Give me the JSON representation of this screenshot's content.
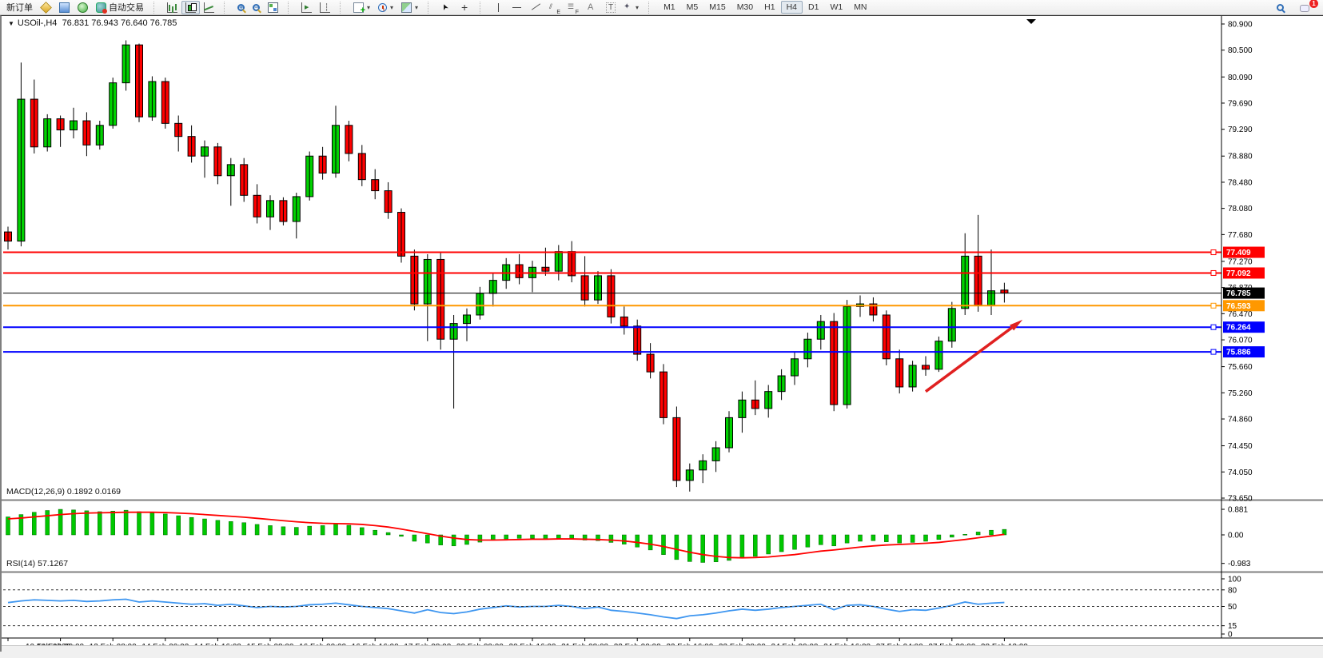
{
  "toolbar": {
    "new_order_label": "新订单",
    "auto_trading_label": "自动交易",
    "timeframes": [
      "M1",
      "M5",
      "M15",
      "M30",
      "H1",
      "H4",
      "D1",
      "W1",
      "MN"
    ],
    "active_timeframe": "H4",
    "notification_badge": "1",
    "icons": [
      "market-watch-icon",
      "data-window-icon",
      "navigator-icon",
      "autotrade-icon",
      "bar-chart-icon",
      "candlestick-chart-icon",
      "line-chart-icon",
      "zoom-in-icon",
      "zoom-out-icon",
      "tile-windows-icon",
      "auto-scroll-icon",
      "chart-shift-icon",
      "add-indicator-icon",
      "period-icon",
      "template-icon",
      "cursor-icon",
      "crosshair-icon",
      "vertical-line-icon",
      "horizontal-line-icon",
      "trendline-icon",
      "equidistant-channel-icon",
      "fibonacci-icon",
      "text-icon",
      "text-label-icon",
      "arrow-objects-icon",
      "search-icon",
      "chat-icon"
    ]
  },
  "chart_data": [
    {
      "type": "candlestick",
      "symbol": "USOil-",
      "timeframe": "H4",
      "title": "USOil-,H4",
      "ohlc_text": "76.831 76.943 76.640 76.785",
      "current_price": 76.785,
      "ylim": [
        73.65,
        80.9
      ],
      "colors": {
        "up": "#00d200",
        "down": "#ff0000",
        "outline": "#000000"
      },
      "price_ticks": [
        "80.900",
        "80.500",
        "80.090",
        "79.690",
        "79.290",
        "78.880",
        "78.480",
        "78.080",
        "77.680",
        "77.270",
        "76.870",
        "76.470",
        "76.070",
        "75.660",
        "75.260",
        "74.860",
        "74.450",
        "74.050",
        "73.650"
      ],
      "hlines": [
        {
          "price": 77.409,
          "label": "77.409",
          "color": "#ff0000"
        },
        {
          "price": 77.092,
          "label": "77.092",
          "color": "#ff0000"
        },
        {
          "price": 76.785,
          "label": "76.785",
          "color": "#000000",
          "is_current_price": true
        },
        {
          "price": 76.593,
          "label": "76.593",
          "color": "#ff9800"
        },
        {
          "price": 76.264,
          "label": "76.264",
          "color": "#0000ff"
        },
        {
          "price": 75.886,
          "label": "75.886",
          "color": "#0000ff"
        }
      ],
      "trend_arrow": {
        "color": "#e02020",
        "from_price": 75.28,
        "to_price": 76.32,
        "from_bar": 70,
        "to_bar": 77
      },
      "x_labels": [
        "10 Feb 2023",
        "10 Feb 20:00",
        "13 Feb 08:00",
        "14 Feb 00:00",
        "14 Feb 16:00",
        "15 Feb 08:00",
        "16 Feb 00:00",
        "16 Feb 16:00",
        "17 Feb 08:00",
        "20 Feb 00:00",
        "20 Feb 16:00",
        "21 Feb 08:00",
        "22 Feb 00:00",
        "22 Feb 16:00",
        "23 Feb 08:00",
        "24 Feb 00:00",
        "24 Feb 16:00",
        "27 Feb 04:00",
        "27 Feb 20:00",
        "28 Feb 12:00"
      ],
      "candles": [
        [
          77.72,
          77.8,
          77.45,
          77.58
        ],
        [
          77.58,
          80.31,
          77.5,
          79.75
        ],
        [
          79.75,
          80.05,
          78.92,
          79.02
        ],
        [
          79.02,
          79.52,
          78.95,
          79.45
        ],
        [
          79.45,
          79.5,
          79.02,
          79.28
        ],
        [
          79.28,
          79.62,
          79.15,
          79.42
        ],
        [
          79.42,
          79.55,
          78.88,
          79.05
        ],
        [
          79.05,
          79.42,
          78.98,
          79.35
        ],
        [
          79.35,
          80.08,
          79.3,
          80.0
        ],
        [
          80.0,
          80.65,
          79.88,
          80.58
        ],
        [
          80.58,
          80.6,
          79.4,
          79.48
        ],
        [
          79.48,
          80.1,
          79.42,
          80.02
        ],
        [
          80.02,
          80.08,
          79.3,
          79.38
        ],
        [
          79.38,
          79.5,
          78.95,
          79.18
        ],
        [
          79.18,
          79.35,
          78.78,
          78.88
        ],
        [
          78.88,
          79.12,
          78.55,
          79.02
        ],
        [
          79.02,
          79.08,
          78.45,
          78.58
        ],
        [
          78.58,
          78.85,
          78.12,
          78.75
        ],
        [
          78.75,
          78.85,
          78.18,
          78.28
        ],
        [
          78.28,
          78.45,
          77.85,
          77.95
        ],
        [
          77.95,
          78.28,
          77.75,
          78.2
        ],
        [
          78.2,
          78.25,
          77.82,
          77.88
        ],
        [
          77.88,
          78.32,
          77.62,
          78.26
        ],
        [
          78.26,
          78.95,
          78.2,
          78.88
        ],
        [
          78.88,
          79.02,
          78.52,
          78.62
        ],
        [
          78.62,
          79.65,
          78.55,
          79.35
        ],
        [
          79.35,
          79.42,
          78.8,
          78.92
        ],
        [
          78.92,
          79.05,
          78.42,
          78.52
        ],
        [
          78.52,
          78.68,
          78.22,
          78.35
        ],
        [
          78.35,
          78.48,
          77.92,
          78.02
        ],
        [
          78.02,
          78.08,
          77.25,
          77.35
        ],
        [
          77.35,
          77.45,
          76.52,
          76.62
        ],
        [
          76.62,
          77.38,
          76.05,
          77.3
        ],
        [
          77.3,
          77.4,
          75.92,
          76.08
        ],
        [
          76.08,
          76.45,
          75.02,
          76.32
        ],
        [
          76.32,
          76.55,
          76.05,
          76.45
        ],
        [
          76.45,
          76.88,
          76.38,
          76.78
        ],
        [
          76.78,
          77.08,
          76.58,
          76.98
        ],
        [
          76.98,
          77.32,
          76.85,
          77.22
        ],
        [
          77.22,
          77.38,
          76.92,
          77.02
        ],
        [
          77.02,
          77.28,
          76.8,
          77.18
        ],
        [
          77.18,
          77.48,
          77.05,
          77.12
        ],
        [
          77.12,
          77.52,
          76.98,
          77.42
        ],
        [
          77.42,
          77.58,
          76.95,
          77.05
        ],
        [
          77.05,
          77.35,
          76.58,
          76.68
        ],
        [
          76.68,
          77.12,
          76.62,
          77.05
        ],
        [
          77.05,
          77.15,
          76.32,
          76.42
        ],
        [
          76.42,
          76.58,
          76.15,
          76.28
        ],
        [
          76.28,
          76.38,
          75.75,
          75.85
        ],
        [
          75.85,
          76.02,
          75.48,
          75.58
        ],
        [
          75.58,
          75.7,
          74.78,
          74.88
        ],
        [
          74.88,
          75.05,
          73.82,
          73.92
        ],
        [
          73.92,
          74.18,
          73.75,
          74.08
        ],
        [
          74.08,
          74.32,
          73.88,
          74.22
        ],
        [
          74.22,
          74.52,
          74.05,
          74.42
        ],
        [
          74.42,
          74.98,
          74.35,
          74.88
        ],
        [
          74.88,
          75.28,
          74.65,
          75.15
        ],
        [
          75.15,
          75.45,
          74.92,
          75.02
        ],
        [
          75.02,
          75.38,
          74.88,
          75.28
        ],
        [
          75.28,
          75.62,
          75.15,
          75.52
        ],
        [
          75.52,
          75.88,
          75.38,
          75.78
        ],
        [
          75.78,
          76.18,
          75.65,
          76.08
        ],
        [
          76.08,
          76.45,
          75.92,
          76.35
        ],
        [
          76.35,
          76.48,
          74.98,
          75.08
        ],
        [
          75.08,
          76.68,
          75.02,
          76.58
        ],
        [
          76.58,
          76.75,
          76.42,
          76.62
        ],
        [
          76.62,
          76.72,
          76.35,
          76.45
        ],
        [
          76.45,
          76.52,
          75.68,
          75.78
        ],
        [
          75.78,
          75.92,
          75.25,
          75.35
        ],
        [
          75.35,
          75.75,
          75.28,
          75.68
        ],
        [
          75.68,
          75.82,
          75.52,
          75.62
        ],
        [
          75.62,
          76.12,
          75.58,
          76.05
        ],
        [
          76.05,
          76.65,
          75.95,
          76.55
        ],
        [
          76.55,
          77.7,
          76.45,
          77.35
        ],
        [
          77.35,
          77.98,
          76.5,
          76.6
        ],
        [
          76.6,
          77.45,
          76.45,
          76.82
        ],
        [
          76.831,
          76.943,
          76.64,
          76.785
        ]
      ]
    },
    {
      "type": "bar",
      "label": "MACD(12,26,9)",
      "values_text": "0.1892 0.0169",
      "ticks": [
        "0.881",
        "0.00",
        "-0.983"
      ],
      "tick_values": [
        0.881,
        0.0,
        -0.983
      ],
      "histogram_color": "#00c800",
      "signal_color": "#ff0000",
      "histogram": [
        0.62,
        0.7,
        0.78,
        0.84,
        0.88,
        0.86,
        0.83,
        0.8,
        0.82,
        0.85,
        0.8,
        0.76,
        0.72,
        0.66,
        0.6,
        0.55,
        0.5,
        0.46,
        0.42,
        0.36,
        0.32,
        0.28,
        0.26,
        0.3,
        0.32,
        0.38,
        0.33,
        0.25,
        0.16,
        0.08,
        -0.05,
        -0.22,
        -0.28,
        -0.35,
        -0.38,
        -0.33,
        -0.25,
        -0.18,
        -0.14,
        -0.12,
        -0.12,
        -0.13,
        -0.12,
        -0.14,
        -0.18,
        -0.2,
        -0.26,
        -0.32,
        -0.42,
        -0.52,
        -0.68,
        -0.85,
        -0.92,
        -0.95,
        -0.93,
        -0.88,
        -0.8,
        -0.74,
        -0.66,
        -0.58,
        -0.5,
        -0.42,
        -0.34,
        -0.38,
        -0.28,
        -0.22,
        -0.2,
        -0.24,
        -0.28,
        -0.26,
        -0.22,
        -0.16,
        -0.08,
        0.02,
        0.1,
        0.16,
        0.1892
      ],
      "signal": [
        0.55,
        0.58,
        0.62,
        0.66,
        0.7,
        0.73,
        0.75,
        0.76,
        0.77,
        0.78,
        0.78,
        0.78,
        0.77,
        0.75,
        0.73,
        0.7,
        0.67,
        0.64,
        0.61,
        0.57,
        0.53,
        0.49,
        0.45,
        0.42,
        0.4,
        0.39,
        0.38,
        0.36,
        0.32,
        0.27,
        0.2,
        0.12,
        0.04,
        -0.04,
        -0.11,
        -0.16,
        -0.18,
        -0.18,
        -0.17,
        -0.16,
        -0.15,
        -0.15,
        -0.14,
        -0.14,
        -0.15,
        -0.16,
        -0.18,
        -0.21,
        -0.26,
        -0.32,
        -0.4,
        -0.5,
        -0.6,
        -0.68,
        -0.74,
        -0.78,
        -0.79,
        -0.78,
        -0.76,
        -0.72,
        -0.68,
        -0.62,
        -0.56,
        -0.52,
        -0.47,
        -0.42,
        -0.38,
        -0.35,
        -0.33,
        -0.31,
        -0.29,
        -0.26,
        -0.21,
        -0.16,
        -0.1,
        -0.04,
        0.0169
      ]
    },
    {
      "type": "line",
      "label": "RSI(14)",
      "value_text": "57.1267",
      "line_color": "#3e96f0",
      "ticks": [
        "100",
        "80",
        "50",
        "15",
        "0"
      ],
      "tick_values": [
        100,
        80,
        50,
        15,
        0
      ],
      "level_lines": [
        80,
        50,
        15
      ],
      "values": [
        57,
        60,
        62,
        61,
        60,
        61,
        59,
        60,
        62,
        63,
        58,
        60,
        58,
        56,
        54,
        55,
        52,
        54,
        51,
        48,
        50,
        49,
        50,
        53,
        54,
        56,
        53,
        50,
        48,
        46,
        42,
        38,
        44,
        39,
        37,
        40,
        45,
        48,
        51,
        49,
        50,
        50,
        52,
        50,
        46,
        49,
        43,
        41,
        38,
        35,
        31,
        28,
        33,
        35,
        38,
        42,
        45,
        43,
        45,
        48,
        50,
        52,
        54,
        44,
        52,
        53,
        50,
        45,
        41,
        44,
        43,
        47,
        52,
        58,
        54,
        56,
        57.1267
      ]
    }
  ]
}
